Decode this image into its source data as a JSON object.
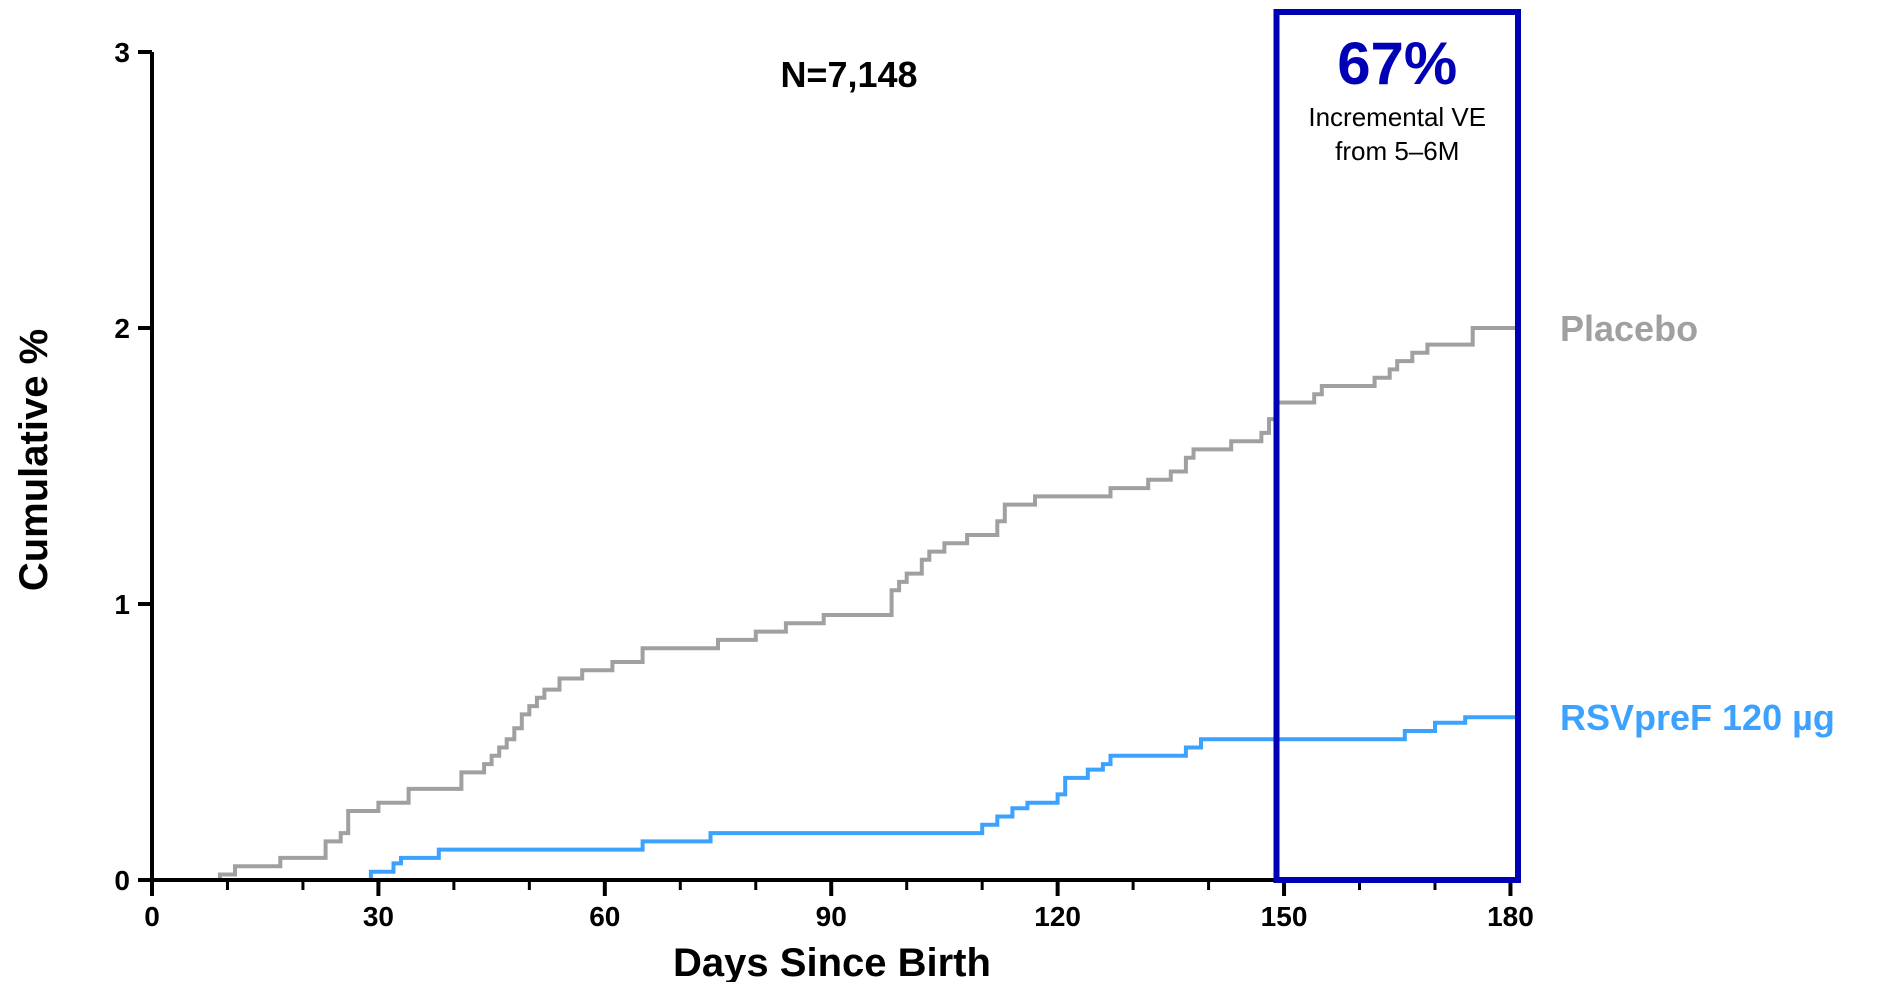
{
  "chart_data": {
    "type": "line",
    "step": true,
    "xlabel": "Days Since Birth",
    "ylabel": "Cumulative %",
    "xlim": [
      0,
      181
    ],
    "ylim": [
      0,
      3
    ],
    "x_ticks": [
      0,
      30,
      60,
      90,
      120,
      150,
      180
    ],
    "y_ticks": [
      0,
      1,
      2,
      3
    ],
    "grid": false,
    "annotation_n": "N=7,148",
    "highlight": {
      "x_range": [
        149,
        181
      ],
      "value": "67%",
      "line1": "Incremental VE",
      "line2": "from 5–6M",
      "color": "#0000b4"
    },
    "series": [
      {
        "name": "Placebo",
        "color": "#a0a0a0",
        "points": [
          [
            0,
            0
          ],
          [
            9,
            0
          ],
          [
            9,
            0.02
          ],
          [
            11,
            0.02
          ],
          [
            11,
            0.05
          ],
          [
            17,
            0.05
          ],
          [
            17,
            0.08
          ],
          [
            23,
            0.08
          ],
          [
            23,
            0.14
          ],
          [
            25,
            0.14
          ],
          [
            25,
            0.17
          ],
          [
            26,
            0.17
          ],
          [
            26,
            0.25
          ],
          [
            30,
            0.25
          ],
          [
            30,
            0.28
          ],
          [
            34,
            0.28
          ],
          [
            34,
            0.33
          ],
          [
            41,
            0.33
          ],
          [
            41,
            0.39
          ],
          [
            44,
            0.39
          ],
          [
            44,
            0.42
          ],
          [
            45,
            0.42
          ],
          [
            45,
            0.45
          ],
          [
            46,
            0.45
          ],
          [
            46,
            0.48
          ],
          [
            47,
            0.48
          ],
          [
            47,
            0.51
          ],
          [
            48,
            0.51
          ],
          [
            48,
            0.55
          ],
          [
            49,
            0.55
          ],
          [
            49,
            0.6
          ],
          [
            50,
            0.6
          ],
          [
            50,
            0.63
          ],
          [
            51,
            0.63
          ],
          [
            51,
            0.66
          ],
          [
            52,
            0.66
          ],
          [
            52,
            0.69
          ],
          [
            54,
            0.69
          ],
          [
            54,
            0.73
          ],
          [
            57,
            0.73
          ],
          [
            57,
            0.76
          ],
          [
            61,
            0.76
          ],
          [
            61,
            0.79
          ],
          [
            65,
            0.79
          ],
          [
            65,
            0.84
          ],
          [
            75,
            0.84
          ],
          [
            75,
            0.87
          ],
          [
            80,
            0.87
          ],
          [
            80,
            0.9
          ],
          [
            84,
            0.9
          ],
          [
            84,
            0.93
          ],
          [
            89,
            0.93
          ],
          [
            89,
            0.96
          ],
          [
            98,
            0.96
          ],
          [
            98,
            1.05
          ],
          [
            99,
            1.05
          ],
          [
            99,
            1.08
          ],
          [
            100,
            1.08
          ],
          [
            100,
            1.11
          ],
          [
            102,
            1.11
          ],
          [
            102,
            1.16
          ],
          [
            103,
            1.16
          ],
          [
            103,
            1.19
          ],
          [
            105,
            1.19
          ],
          [
            105,
            1.22
          ],
          [
            108,
            1.22
          ],
          [
            108,
            1.25
          ],
          [
            112,
            1.25
          ],
          [
            112,
            1.3
          ],
          [
            113,
            1.3
          ],
          [
            113,
            1.36
          ],
          [
            117,
            1.36
          ],
          [
            117,
            1.39
          ],
          [
            127,
            1.39
          ],
          [
            127,
            1.42
          ],
          [
            132,
            1.42
          ],
          [
            132,
            1.45
          ],
          [
            135,
            1.45
          ],
          [
            135,
            1.48
          ],
          [
            137,
            1.48
          ],
          [
            137,
            1.53
          ],
          [
            138,
            1.53
          ],
          [
            138,
            1.56
          ],
          [
            143,
            1.56
          ],
          [
            143,
            1.59
          ],
          [
            147,
            1.59
          ],
          [
            147,
            1.62
          ],
          [
            148,
            1.62
          ],
          [
            148,
            1.67
          ],
          [
            149,
            1.67
          ],
          [
            149,
            1.73
          ],
          [
            154,
            1.73
          ],
          [
            154,
            1.76
          ],
          [
            155,
            1.76
          ],
          [
            155,
            1.79
          ],
          [
            162,
            1.79
          ],
          [
            162,
            1.82
          ],
          [
            164,
            1.82
          ],
          [
            164,
            1.85
          ],
          [
            165,
            1.85
          ],
          [
            165,
            1.88
          ],
          [
            167,
            1.88
          ],
          [
            167,
            1.91
          ],
          [
            169,
            1.91
          ],
          [
            169,
            1.94
          ],
          [
            175,
            1.94
          ],
          [
            175,
            2.0
          ],
          [
            181,
            2.0
          ]
        ]
      },
      {
        "name": "RSVpreF 120 µg",
        "color": "#3da2ff",
        "points": [
          [
            0,
            0
          ],
          [
            29,
            0
          ],
          [
            29,
            0.03
          ],
          [
            32,
            0.03
          ],
          [
            32,
            0.06
          ],
          [
            33,
            0.06
          ],
          [
            33,
            0.08
          ],
          [
            38,
            0.08
          ],
          [
            38,
            0.11
          ],
          [
            65,
            0.11
          ],
          [
            65,
            0.14
          ],
          [
            74,
            0.14
          ],
          [
            74,
            0.17
          ],
          [
            110,
            0.17
          ],
          [
            110,
            0.2
          ],
          [
            112,
            0.2
          ],
          [
            112,
            0.23
          ],
          [
            114,
            0.23
          ],
          [
            114,
            0.26
          ],
          [
            116,
            0.26
          ],
          [
            116,
            0.28
          ],
          [
            120,
            0.28
          ],
          [
            120,
            0.31
          ],
          [
            121,
            0.31
          ],
          [
            121,
            0.37
          ],
          [
            124,
            0.37
          ],
          [
            124,
            0.4
          ],
          [
            126,
            0.4
          ],
          [
            126,
            0.42
          ],
          [
            127,
            0.42
          ],
          [
            127,
            0.45
          ],
          [
            137,
            0.45
          ],
          [
            137,
            0.48
          ],
          [
            139,
            0.48
          ],
          [
            139,
            0.51
          ],
          [
            166,
            0.51
          ],
          [
            166,
            0.54
          ],
          [
            170,
            0.54
          ],
          [
            170,
            0.57
          ],
          [
            174,
            0.57
          ],
          [
            174,
            0.59
          ],
          [
            181,
            0.59
          ]
        ]
      }
    ]
  }
}
